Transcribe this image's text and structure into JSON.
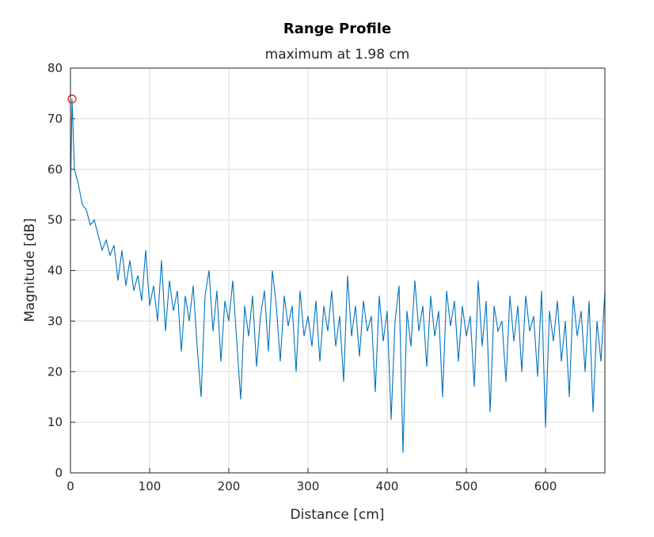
{
  "chart_data": {
    "type": "line",
    "title": "Range Profile",
    "subtitle": "maximum at 1.98 cm",
    "xlabel": "Distance [cm]",
    "ylabel": "Magnitude [dB]",
    "xlim": [
      0,
      675
    ],
    "ylim": [
      0,
      80
    ],
    "xticks": [
      0,
      100,
      200,
      300,
      400,
      500,
      600
    ],
    "yticks": [
      0,
      10,
      20,
      30,
      40,
      50,
      60,
      70,
      80
    ],
    "grid": true,
    "legend": "none",
    "line_color": "#0072BD",
    "marker": {
      "x": 1.98,
      "y": 73.9,
      "color": "#FF0000",
      "shape": "circle"
    },
    "series": [
      {
        "x": [
          0,
          2,
          5,
          10,
          15,
          20,
          25,
          30,
          35,
          40,
          45,
          50,
          55,
          60,
          65,
          70,
          75,
          80,
          85,
          90,
          95,
          100,
          105,
          110,
          115,
          120,
          125,
          130,
          135,
          140,
          145,
          150,
          155,
          160,
          165,
          170,
          175,
          180,
          185,
          190,
          195,
          200,
          205,
          210,
          215,
          220,
          225,
          230,
          235,
          240,
          245,
          250,
          255,
          260,
          265,
          270,
          275,
          280,
          285,
          290,
          295,
          300,
          305,
          310,
          315,
          320,
          325,
          330,
          335,
          340,
          345,
          350,
          355,
          360,
          365,
          370,
          375,
          380,
          385,
          390,
          395,
          400,
          405,
          410,
          415,
          420,
          425,
          430,
          435,
          440,
          445,
          450,
          455,
          460,
          465,
          470,
          475,
          480,
          485,
          490,
          495,
          500,
          505,
          510,
          515,
          520,
          525,
          530,
          535,
          540,
          545,
          550,
          555,
          560,
          565,
          570,
          575,
          580,
          585,
          590,
          595,
          600,
          605,
          610,
          615,
          620,
          625,
          630,
          635,
          640,
          645,
          650,
          655,
          660,
          665,
          670,
          675
        ],
        "values": [
          55,
          73.9,
          60,
          57,
          53,
          52,
          49,
          50,
          47,
          44,
          46,
          43,
          45,
          38,
          44,
          37,
          42,
          36,
          39,
          34,
          44,
          33,
          37,
          30,
          42,
          28,
          38,
          32,
          36,
          24,
          35,
          30,
          37,
          25,
          15,
          35,
          40,
          28,
          36,
          22,
          34,
          30,
          38,
          26,
          14.5,
          33,
          27,
          35,
          21,
          31,
          36,
          24,
          40,
          33,
          22,
          35,
          29,
          33,
          20,
          36,
          27,
          31,
          25,
          34,
          22,
          33,
          28,
          36,
          25,
          31,
          18,
          39,
          27,
          33,
          23,
          34,
          28,
          31,
          16,
          35,
          26,
          32,
          10.5,
          30,
          37,
          4,
          32,
          25,
          38,
          28,
          33,
          21,
          35,
          27,
          32,
          15,
          36,
          29,
          34,
          22,
          33,
          27,
          31,
          17,
          38,
          25,
          34,
          12,
          33,
          28,
          30,
          18,
          35,
          26,
          33,
          20,
          35,
          28,
          31,
          19,
          36,
          9,
          32,
          26,
          34,
          22,
          30,
          15,
          35,
          27,
          32,
          20,
          34,
          12,
          30,
          22,
          36
        ]
      }
    ]
  }
}
